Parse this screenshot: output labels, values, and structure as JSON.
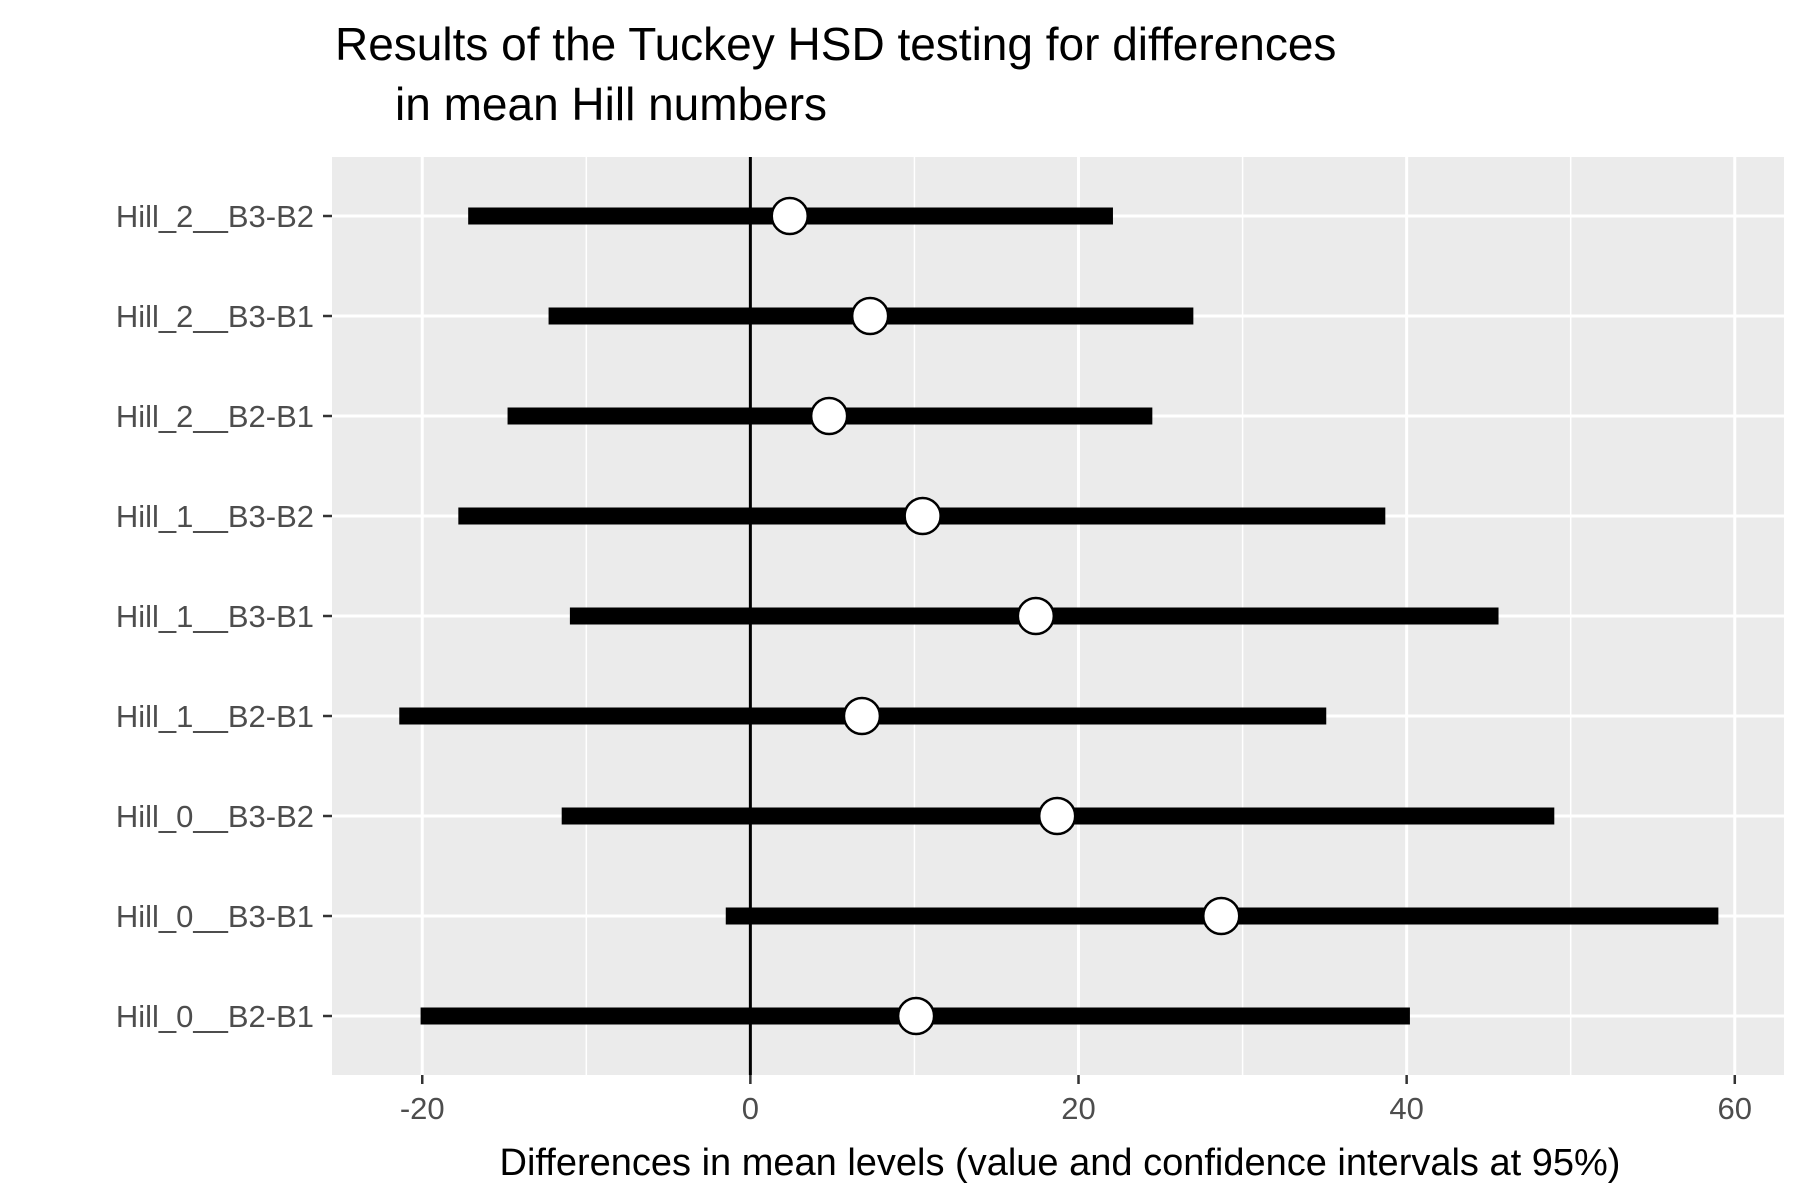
{
  "chart_data": {
    "type": "errorbar",
    "title_lines": [
      "Results of the Tuckey HSD testing for differences",
      "in mean Hill numbers"
    ],
    "xlabel": "Differences in mean levels (value and confidence intervals at 95%)",
    "ylabel": "",
    "xlim": [
      -25.5,
      63
    ],
    "x_ticks": [
      -20,
      0,
      20,
      40,
      60
    ],
    "x_tick_labels": [
      "-20",
      "0",
      "20",
      "40",
      "60"
    ],
    "x_minor_ticks": [
      -10,
      10,
      30,
      50
    ],
    "reference_line_x": 0,
    "grid": true,
    "legend": "none",
    "colors": {
      "panel_background": "#ebebeb",
      "grid": "#ffffff",
      "interval": "#000000",
      "point_fill": "#ffffff",
      "point_stroke": "#000000",
      "reference_line": "#000000",
      "tick_label": "#4d4d4d"
    },
    "categories": [
      "Hill_2__B3-B2",
      "Hill_2__B3-B1",
      "Hill_2__B2-B1",
      "Hill_1__B3-B2",
      "Hill_1__B3-B1",
      "Hill_1__B2-B1",
      "Hill_0__B3-B2",
      "Hill_0__B3-B1",
      "Hill_0__B2-B1"
    ],
    "estimates": [
      2.4,
      7.3,
      4.8,
      10.5,
      17.4,
      6.8,
      18.7,
      28.7,
      10.1
    ],
    "lower": [
      -17.2,
      -12.3,
      -14.8,
      -17.8,
      -11.0,
      -21.4,
      -11.5,
      -1.5,
      -20.1
    ],
    "upper": [
      22.1,
      27.0,
      24.5,
      38.7,
      45.6,
      35.1,
      49.0,
      59.0,
      40.2
    ]
  }
}
